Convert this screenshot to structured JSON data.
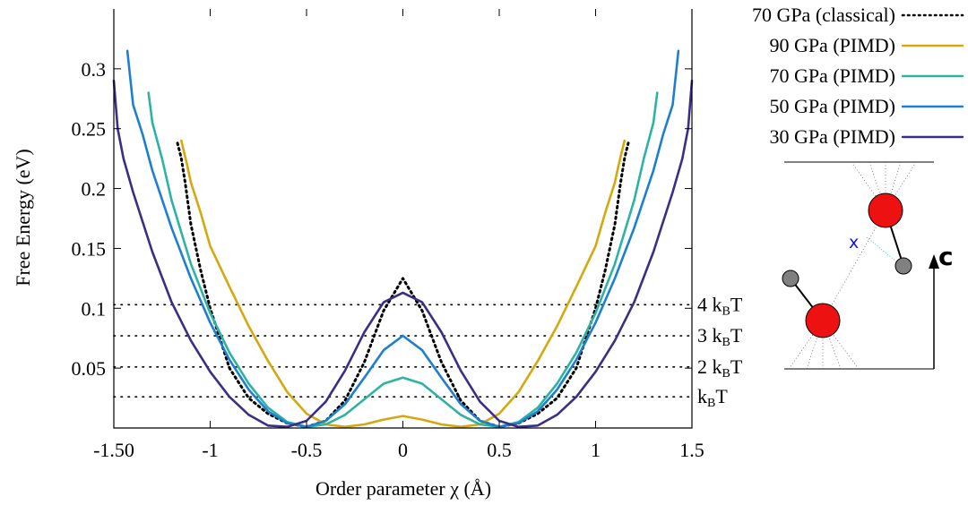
{
  "chart_data": {
    "type": "line",
    "title": "",
    "xlabel": "Order parameter χ (Å)",
    "ylabel": "Free Energy (eV)",
    "xlim": [
      -1.5,
      1.5
    ],
    "ylim": [
      0,
      0.35
    ],
    "x_tick_labels": [
      "-1.50",
      "-1",
      "-0.5",
      "0",
      "0.5",
      "1",
      "1.5"
    ],
    "y_tick_labels": [
      "0.05",
      "0.1",
      "0.15",
      "0.2",
      "0.25",
      "0.3"
    ],
    "legend_position": "top-right, outside plot",
    "series": [
      {
        "name": "70 GPa (classical)",
        "color": "#000000",
        "dash": "dotted",
        "x": [
          -1.17,
          -1.16,
          -1.15,
          -1.13,
          -1.1,
          -1.05,
          -1.0,
          -0.9,
          -0.8,
          -0.7,
          -0.6,
          -0.5,
          -0.4,
          -0.3,
          -0.2,
          -0.1,
          0,
          0.1,
          0.2,
          0.3,
          0.4,
          0.5,
          0.6,
          0.7,
          0.8,
          0.9,
          1.0,
          1.05,
          1.1,
          1.13,
          1.15,
          1.16,
          1.17
        ],
        "y": [
          0.238,
          0.232,
          0.225,
          0.205,
          0.17,
          0.132,
          0.1,
          0.05,
          0.025,
          0.012,
          0.004,
          0.001,
          0.006,
          0.023,
          0.055,
          0.098,
          0.125,
          0.098,
          0.055,
          0.023,
          0.006,
          0.001,
          0.004,
          0.012,
          0.025,
          0.05,
          0.1,
          0.132,
          0.17,
          0.205,
          0.225,
          0.232,
          0.238
        ]
      },
      {
        "name": "90 GPa (PIMD)",
        "color": "#d4a80f",
        "x": [
          -1.15,
          -1.12,
          -1.1,
          -1.05,
          -1.0,
          -0.9,
          -0.8,
          -0.7,
          -0.6,
          -0.5,
          -0.4,
          -0.3,
          -0.2,
          -0.1,
          0,
          0.1,
          0.2,
          0.3,
          0.4,
          0.5,
          0.6,
          0.7,
          0.8,
          0.9,
          1.0,
          1.05,
          1.1,
          1.12,
          1.15
        ],
        "y": [
          0.24,
          0.22,
          0.205,
          0.18,
          0.152,
          0.118,
          0.085,
          0.056,
          0.03,
          0.012,
          0.003,
          0.001,
          0.003,
          0.007,
          0.01,
          0.007,
          0.003,
          0.001,
          0.003,
          0.012,
          0.03,
          0.056,
          0.085,
          0.118,
          0.152,
          0.18,
          0.205,
          0.22,
          0.24
        ]
      },
      {
        "name": "70 GPa (PIMD)",
        "color": "#2db3a3",
        "x": [
          -1.32,
          -1.3,
          -1.25,
          -1.2,
          -1.1,
          -1.0,
          -0.9,
          -0.8,
          -0.7,
          -0.6,
          -0.5,
          -0.4,
          -0.3,
          -0.2,
          -0.1,
          0,
          0.1,
          0.2,
          0.3,
          0.4,
          0.5,
          0.6,
          0.7,
          0.8,
          0.9,
          1.0,
          1.1,
          1.2,
          1.25,
          1.3,
          1.32
        ],
        "y": [
          0.28,
          0.255,
          0.225,
          0.19,
          0.137,
          0.096,
          0.063,
          0.037,
          0.017,
          0.005,
          0.001,
          0.003,
          0.011,
          0.024,
          0.037,
          0.042,
          0.037,
          0.024,
          0.011,
          0.003,
          0.001,
          0.005,
          0.017,
          0.037,
          0.063,
          0.096,
          0.137,
          0.19,
          0.225,
          0.255,
          0.28
        ]
      },
      {
        "name": "50 GPa (PIMD)",
        "color": "#1e7fd1",
        "x": [
          -1.43,
          -1.4,
          -1.35,
          -1.3,
          -1.2,
          -1.1,
          -1.0,
          -0.9,
          -0.8,
          -0.7,
          -0.6,
          -0.5,
          -0.4,
          -0.3,
          -0.2,
          -0.1,
          0,
          0.1,
          0.2,
          0.3,
          0.4,
          0.5,
          0.6,
          0.7,
          0.8,
          0.9,
          1.0,
          1.1,
          1.2,
          1.3,
          1.35,
          1.4,
          1.43
        ],
        "y": [
          0.315,
          0.27,
          0.245,
          0.215,
          0.167,
          0.125,
          0.088,
          0.057,
          0.032,
          0.014,
          0.004,
          0.001,
          0.006,
          0.02,
          0.042,
          0.065,
          0.077,
          0.065,
          0.042,
          0.02,
          0.006,
          0.001,
          0.004,
          0.014,
          0.032,
          0.057,
          0.088,
          0.125,
          0.167,
          0.215,
          0.245,
          0.27,
          0.315
        ]
      },
      {
        "name": "30 GPa (PIMD)",
        "color": "#3a2f85",
        "x": [
          -1.5,
          -1.48,
          -1.45,
          -1.4,
          -1.3,
          -1.2,
          -1.1,
          -1.0,
          -0.9,
          -0.8,
          -0.7,
          -0.6,
          -0.5,
          -0.4,
          -0.3,
          -0.2,
          -0.1,
          0,
          0.1,
          0.2,
          0.3,
          0.4,
          0.5,
          0.6,
          0.7,
          0.8,
          0.9,
          1.0,
          1.1,
          1.2,
          1.3,
          1.4,
          1.45,
          1.48,
          1.5
        ],
        "y": [
          0.29,
          0.25,
          0.225,
          0.197,
          0.147,
          0.105,
          0.073,
          0.047,
          0.026,
          0.011,
          0.002,
          0.001,
          0.006,
          0.022,
          0.048,
          0.08,
          0.105,
          0.113,
          0.105,
          0.08,
          0.048,
          0.022,
          0.006,
          0.001,
          0.002,
          0.011,
          0.026,
          0.047,
          0.073,
          0.105,
          0.147,
          0.197,
          0.225,
          0.25,
          0.29
        ]
      }
    ],
    "annotations": [
      {
        "y": 0.103,
        "label": "4 k_BT",
        "prefix": "4 k",
        "sub": "B",
        "suffix": "T"
      },
      {
        "y": 0.077,
        "label": "3 k_BT",
        "prefix": "3 k",
        "sub": "B",
        "suffix": "T"
      },
      {
        "y": 0.051,
        "label": "2 k_BT",
        "prefix": "2 k",
        "sub": "B",
        "suffix": "T"
      },
      {
        "y": 0.026,
        "label": "k_BT",
        "prefix": "k",
        "sub": "B",
        "suffix": "T"
      }
    ]
  },
  "inset": {
    "axis_label": "c",
    "distance_label": "x",
    "atom_color_large": "#ee1111",
    "atom_color_small": "#808080"
  }
}
